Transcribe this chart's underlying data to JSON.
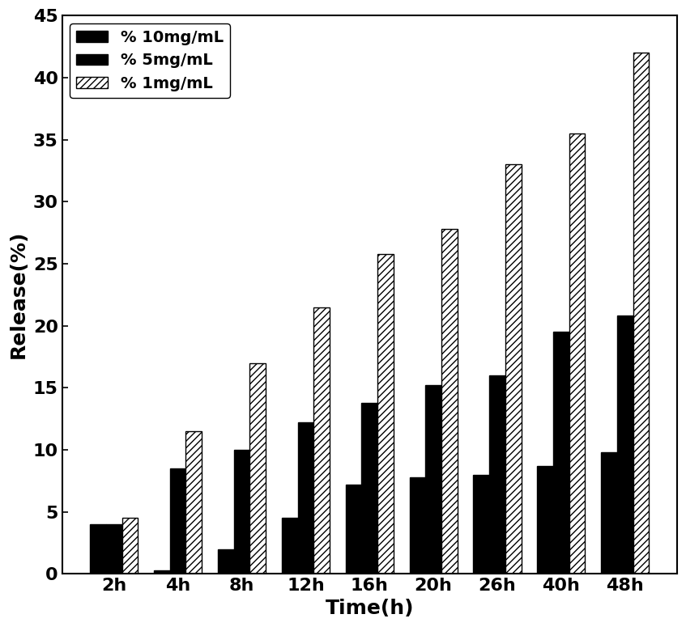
{
  "categories": [
    "2h",
    "4h",
    "8h",
    "12h",
    "16h",
    "20h",
    "26h",
    "40h",
    "48h"
  ],
  "series": {
    "10mg/mL": [
      4.0,
      0.3,
      2.0,
      4.5,
      7.2,
      7.8,
      8.0,
      8.7,
      9.8
    ],
    "5mg/mL": [
      4.0,
      8.5,
      10.0,
      12.2,
      13.8,
      15.2,
      16.0,
      19.5,
      20.8
    ],
    "1mg/mL": [
      4.5,
      11.5,
      17.0,
      21.5,
      25.8,
      27.8,
      33.0,
      35.5,
      42.0
    ]
  },
  "legend_labels": [
    "% 10mg/mL",
    "% 5mg/mL",
    "% 1mg/mL"
  ],
  "ylabel": "Release(%)",
  "xlabel": "Time(h)",
  "ylim": [
    0,
    45
  ],
  "yticks": [
    0,
    5,
    10,
    15,
    20,
    25,
    30,
    35,
    40,
    45
  ],
  "bar_width": 0.25,
  "colors": [
    "#000000",
    "#000000",
    "#ffffff"
  ],
  "hatches": [
    "",
    "..",
    "////"
  ],
  "edgecolor": "#000000",
  "background_color": "#ffffff",
  "label_fontsize": 18,
  "tick_fontsize": 16,
  "legend_fontsize": 14
}
